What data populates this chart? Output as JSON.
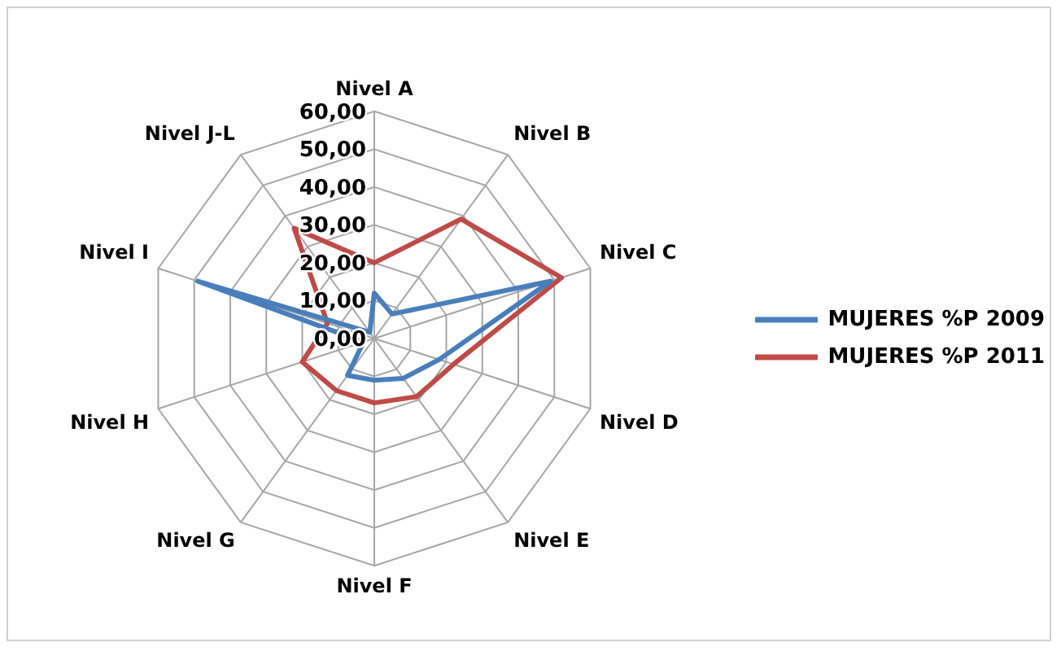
{
  "chart_data": {
    "type": "radar",
    "categories": [
      "Nivel A",
      "Nivel B",
      "Nivel C",
      "Nivel D",
      "Nivel E",
      "Nivel F",
      "Nivel G",
      "Nivel H",
      "Nivel I",
      "Nivel J-L"
    ],
    "series": [
      {
        "name": "MUJERES %P 2009",
        "color": "#4a7ebb",
        "values": [
          12,
          8,
          49,
          18,
          13,
          11,
          12,
          3,
          49,
          2
        ]
      },
      {
        "name": "MUJERES %P 2011",
        "color": "#be4b48",
        "values": [
          20,
          39,
          52,
          22,
          19,
          17,
          17,
          20,
          13,
          36
        ]
      }
    ],
    "ylim": [
      0,
      60
    ],
    "yticks": [
      {
        "value": 0,
        "label": "0,00"
      },
      {
        "value": 10,
        "label": "10,00"
      },
      {
        "value": 20,
        "label": "20,00"
      },
      {
        "value": 30,
        "label": "30,00"
      },
      {
        "value": 40,
        "label": "40,00"
      },
      {
        "value": 50,
        "label": "50,00"
      },
      {
        "value": 60,
        "label": "60,00"
      }
    ],
    "grid": true,
    "legend": "right",
    "marker": "none"
  }
}
